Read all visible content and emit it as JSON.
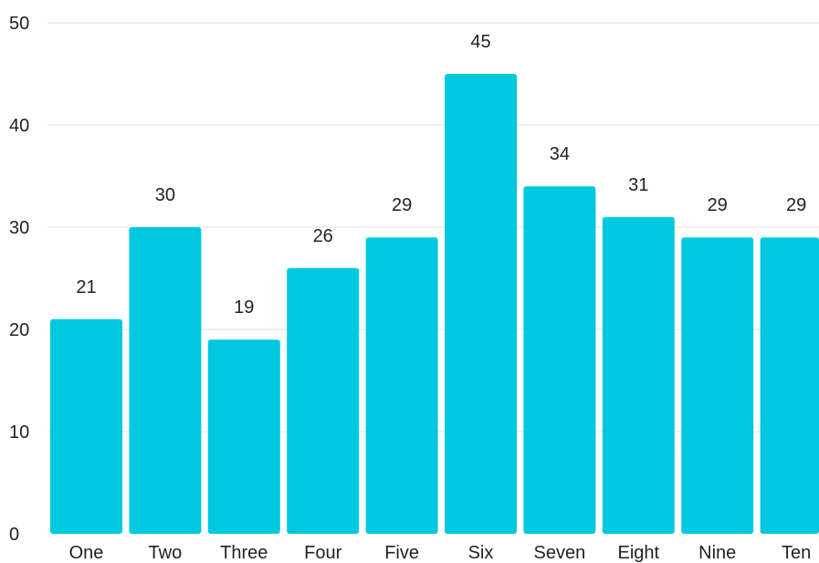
{
  "chart_data": {
    "type": "bar",
    "title": "",
    "xlabel": "",
    "ylabel": "",
    "ylim": [
      0,
      50
    ],
    "yticks": [
      0,
      10,
      20,
      30,
      40,
      50
    ],
    "grid": true,
    "legend": "none",
    "categories": [
      "One",
      "Two",
      "Three",
      "Four",
      "Five",
      "Six",
      "Seven",
      "Eight",
      "Nine",
      "Ten"
    ],
    "values": [
      21,
      30,
      19,
      26,
      29,
      45,
      34,
      31,
      29,
      29
    ],
    "bar_color": "#00c8df",
    "data_labels": true
  }
}
